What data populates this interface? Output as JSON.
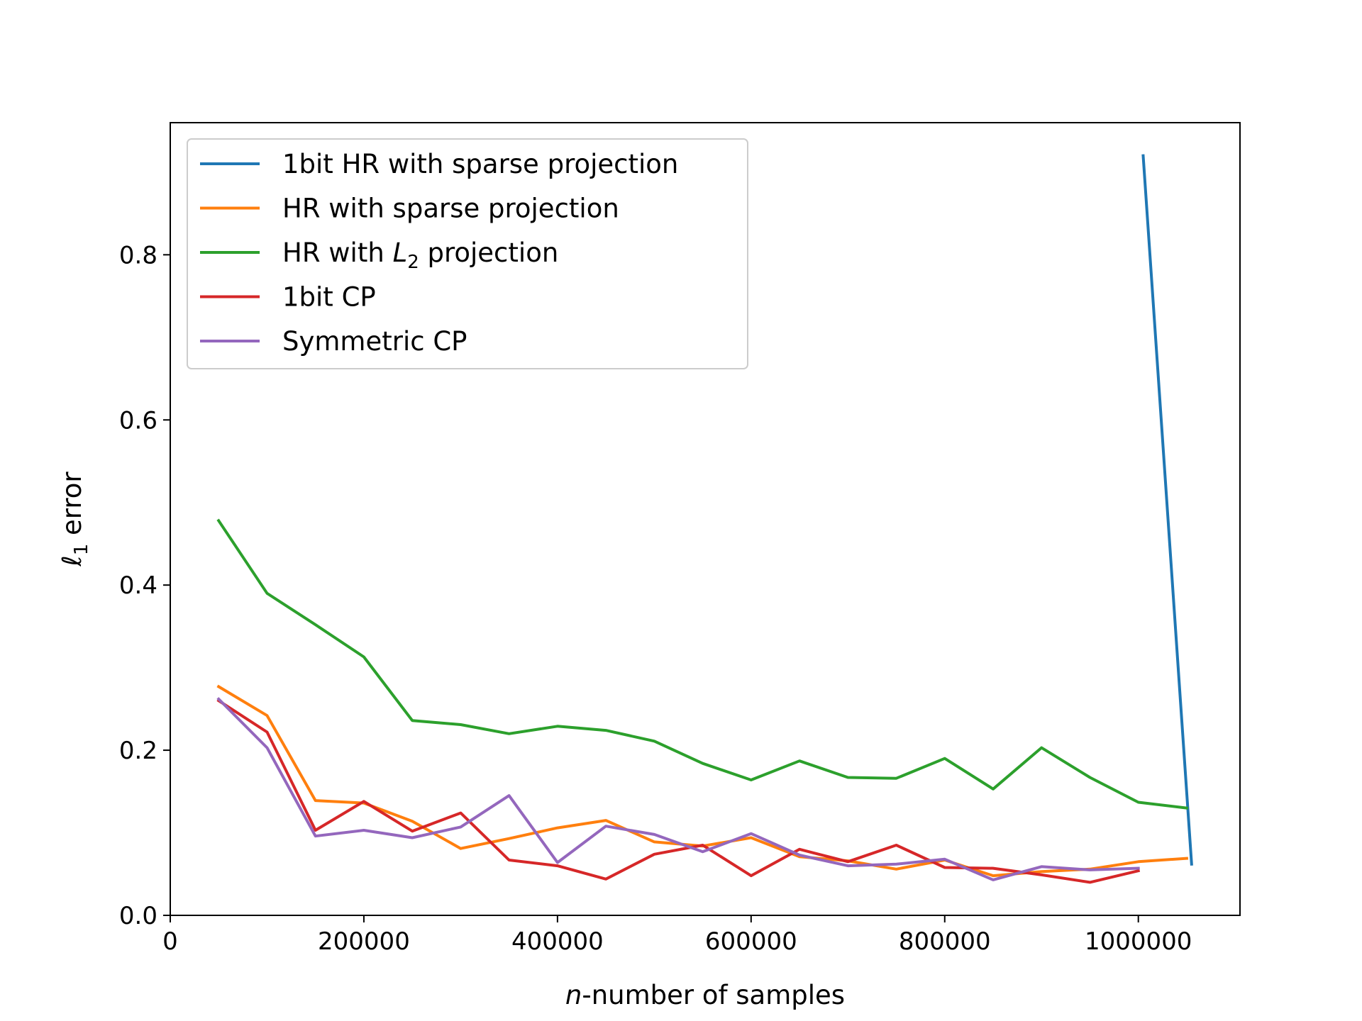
{
  "chart_data": {
    "type": "line",
    "title": "",
    "xlabel_italic": "n",
    "xlabel_rest": "-number of samples",
    "ylabel": "ℓ1 error",
    "ylabel_main": "ℓ",
    "ylabel_sub": "1",
    "ylabel_rest": " error",
    "xlim": [
      0,
      1105000
    ],
    "ylim": [
      0,
      0.96
    ],
    "xticks": [
      0,
      200000,
      400000,
      600000,
      800000,
      1000000
    ],
    "xtick_labels": [
      "0",
      "200000",
      "400000",
      "600000",
      "800000",
      "1000000"
    ],
    "yticks": [
      0.0,
      0.2,
      0.4,
      0.6,
      0.8
    ],
    "ytick_labels": [
      "0.0",
      "0.2",
      "0.4",
      "0.6",
      "0.8"
    ],
    "grid": false,
    "legend_position": "top-left",
    "series": [
      {
        "name": "1bit HR with sparse projection",
        "label_parts": [
          "1bit HR with sparse projection"
        ],
        "color": "#1f77b4",
        "x": [
          1005000,
          1055000
        ],
        "y": [
          0.92,
          0.062
        ]
      },
      {
        "name": "HR with sparse projection",
        "label_parts": [
          "HR with sparse projection"
        ],
        "color": "#ff7f0e",
        "x": [
          50000,
          100000,
          150000,
          200000,
          250000,
          300000,
          350000,
          400000,
          450000,
          500000,
          550000,
          600000,
          650000,
          700000,
          750000,
          800000,
          850000,
          900000,
          950000,
          1000000,
          1050000
        ],
        "y": [
          0.277,
          0.242,
          0.139,
          0.136,
          0.114,
          0.081,
          0.093,
          0.106,
          0.115,
          0.089,
          0.084,
          0.094,
          0.071,
          0.066,
          0.056,
          0.067,
          0.048,
          0.053,
          0.056,
          0.065,
          0.069
        ]
      },
      {
        "name": "HR with L2 projection",
        "label_parts": [
          "HR with ",
          "L",
          "2",
          " projection"
        ],
        "color": "#2ca02c",
        "x": [
          50000,
          100000,
          150000,
          200000,
          250000,
          300000,
          350000,
          400000,
          450000,
          500000,
          550000,
          600000,
          650000,
          700000,
          750000,
          800000,
          850000,
          900000,
          950000,
          1000000,
          1050000
        ],
        "y": [
          0.478,
          0.39,
          0.352,
          0.313,
          0.236,
          0.231,
          0.22,
          0.229,
          0.224,
          0.211,
          0.184,
          0.164,
          0.187,
          0.167,
          0.166,
          0.19,
          0.153,
          0.203,
          0.167,
          0.137,
          0.13
        ]
      },
      {
        "name": "1bit CP",
        "label_parts": [
          "1bit CP"
        ],
        "color": "#d62728",
        "x": [
          50000,
          100000,
          150000,
          200000,
          250000,
          300000,
          350000,
          400000,
          450000,
          500000,
          550000,
          600000,
          650000,
          700000,
          750000,
          800000,
          850000,
          900000,
          950000,
          1000000
        ],
        "y": [
          0.26,
          0.222,
          0.103,
          0.138,
          0.102,
          0.124,
          0.067,
          0.06,
          0.044,
          0.074,
          0.085,
          0.048,
          0.08,
          0.065,
          0.085,
          0.058,
          0.057,
          0.049,
          0.04,
          0.054
        ]
      },
      {
        "name": "Symmetric CP",
        "label_parts": [
          "Symmetric CP"
        ],
        "color": "#9467bd",
        "x": [
          50000,
          100000,
          150000,
          200000,
          250000,
          300000,
          350000,
          400000,
          450000,
          500000,
          550000,
          600000,
          650000,
          700000,
          750000,
          800000,
          850000,
          900000,
          950000,
          1000000
        ],
        "y": [
          0.262,
          0.203,
          0.096,
          0.103,
          0.094,
          0.107,
          0.145,
          0.064,
          0.108,
          0.098,
          0.077,
          0.099,
          0.073,
          0.06,
          0.062,
          0.068,
          0.043,
          0.059,
          0.055,
          0.057
        ]
      }
    ]
  }
}
